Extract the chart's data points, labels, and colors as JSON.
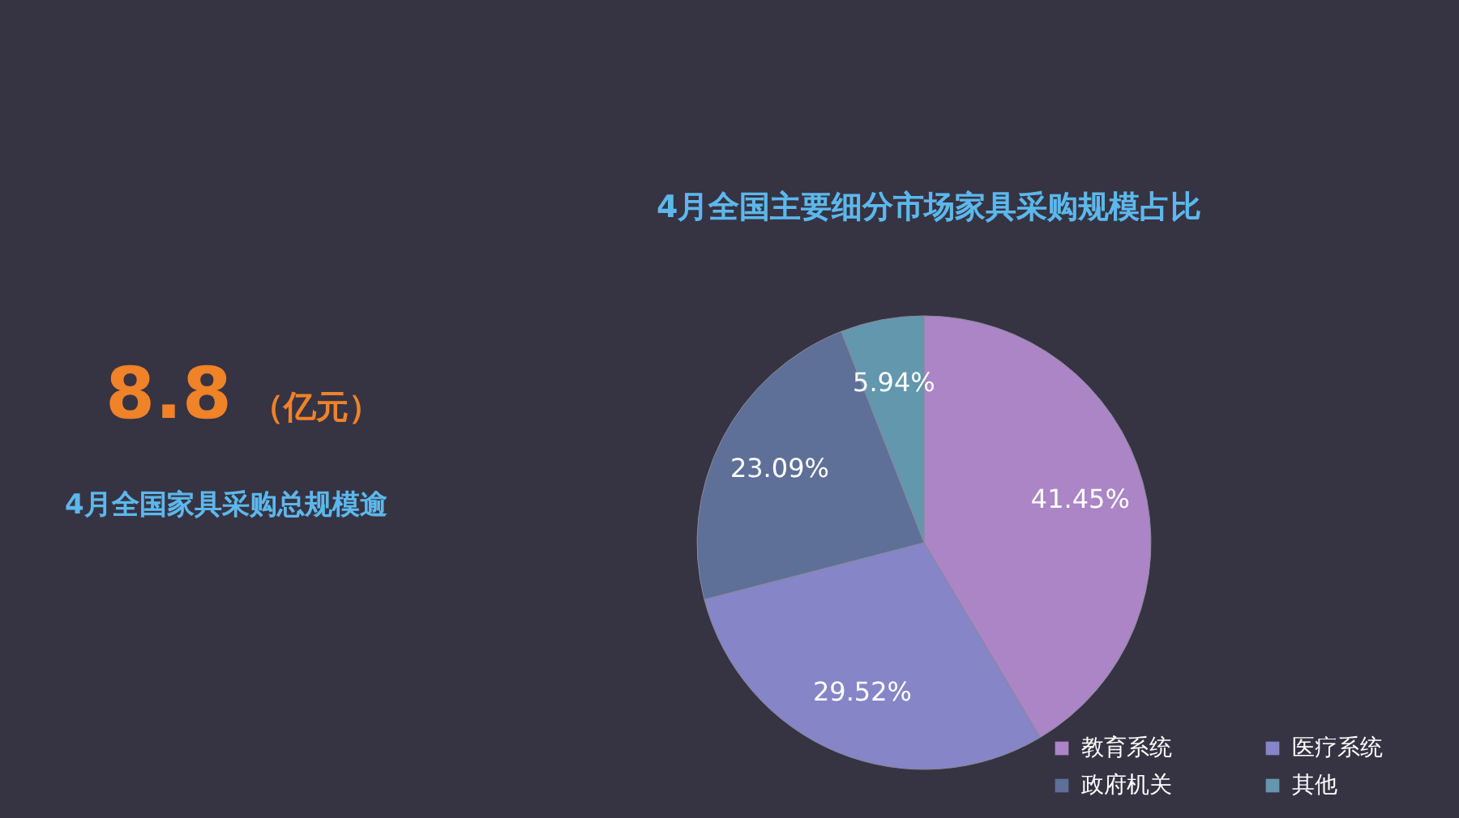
{
  "chart_data": [
    {
      "type": "other",
      "annotations": [
        "8.8",
        "（亿元）",
        "4月全国家具采购总规模逾"
      ]
    },
    {
      "type": "pie",
      "title": "4月全国主要细分市场家具采购规模占比",
      "categories": [
        "教育系统",
        "医疗系统",
        "政府机关",
        "其他"
      ],
      "values": [
        41.45,
        29.52,
        23.09,
        5.94
      ],
      "value_labels": [
        "41.45%",
        "29.52%",
        "23.09%",
        "5.94%"
      ],
      "colors": [
        "#ab85c6",
        "#8585c8",
        "#5e6f98",
        "#6297ae"
      ],
      "legend": "bottom right"
    }
  ]
}
